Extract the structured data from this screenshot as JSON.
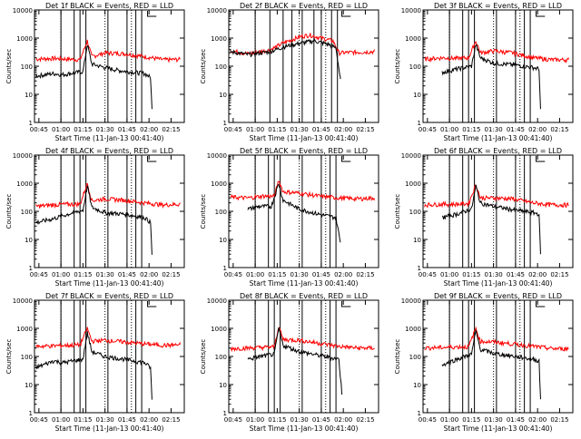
{
  "chart_data": {
    "type": "line",
    "layout": "3x3 grid",
    "ylabel": "Counts/sec",
    "xlabel": "Start Time (11-Jan-13 00:41:40)",
    "yscale": "log",
    "ylim": [
      1,
      10000
    ],
    "ytick_labels": [
      "1",
      "10",
      "100",
      "1000",
      "10000"
    ],
    "xtick_labels": [
      "00:45",
      "01:00",
      "01:15",
      "01:30",
      "01:45",
      "02:00",
      "02:15"
    ],
    "xlim_min": [
      -3,
      99
    ],
    "colors": {
      "events": "#000000",
      "lld": "#ff0000",
      "axes": "#000000"
    },
    "panels": [
      {
        "title": "Det 1f BLACK = Events, RED = LLD",
        "vlines_min": [
          15,
          24,
          28,
          32,
          47,
          60,
          66,
          70
        ],
        "dotted_min": [
          15,
          45,
          63
        ],
        "events": [
          [
            -2,
            45
          ],
          [
            10,
            55
          ],
          [
            16,
            50
          ],
          [
            30,
            65
          ],
          [
            33,
            600
          ],
          [
            36,
            120
          ],
          [
            45,
            90
          ],
          [
            55,
            70
          ],
          [
            72,
            55
          ],
          [
            76,
            40
          ],
          [
            77,
            3
          ]
        ],
        "lld": [
          [
            -2,
            180
          ],
          [
            10,
            190
          ],
          [
            20,
            180
          ],
          [
            28,
            170
          ],
          [
            33,
            800
          ],
          [
            36,
            220
          ],
          [
            45,
            300
          ],
          [
            58,
            280
          ],
          [
            72,
            220
          ],
          [
            85,
            170
          ],
          [
            96,
            175
          ]
        ]
      },
      {
        "title": "Det 2f BLACK = Events, RED = LLD",
        "vlines_min": [
          15,
          25,
          34,
          40,
          47,
          55,
          60,
          67,
          71
        ],
        "dotted_min": [
          15,
          45,
          63
        ],
        "events": [
          [
            -2,
            330
          ],
          [
            10,
            260
          ],
          [
            25,
            330
          ],
          [
            35,
            500
          ],
          [
            45,
            650
          ],
          [
            55,
            800
          ],
          [
            65,
            600
          ],
          [
            70,
            450
          ],
          [
            73,
            35
          ]
        ],
        "lld": [
          [
            -2,
            360
          ],
          [
            10,
            280
          ],
          [
            25,
            380
          ],
          [
            35,
            700
          ],
          [
            45,
            1100
          ],
          [
            52,
            1300
          ],
          [
            60,
            1000
          ],
          [
            68,
            800
          ],
          [
            72,
            300
          ],
          [
            96,
            330
          ]
        ]
      },
      {
        "title": "Det 3f BLACK = Events, RED = LLD",
        "vlines_min": [
          15,
          24,
          28,
          32,
          47,
          60,
          66,
          70
        ],
        "dotted_min": [
          15,
          45,
          63
        ],
        "events": [
          [
            10,
            60
          ],
          [
            20,
            80
          ],
          [
            30,
            100
          ],
          [
            33,
            600
          ],
          [
            36,
            200
          ],
          [
            45,
            130
          ],
          [
            60,
            110
          ],
          [
            72,
            90
          ],
          [
            76,
            80
          ],
          [
            77,
            3
          ]
        ],
        "lld": [
          [
            -2,
            180
          ],
          [
            10,
            200
          ],
          [
            20,
            190
          ],
          [
            28,
            200
          ],
          [
            33,
            800
          ],
          [
            36,
            300
          ],
          [
            45,
            350
          ],
          [
            58,
            300
          ],
          [
            72,
            200
          ],
          [
            85,
            170
          ],
          [
            96,
            170
          ]
        ]
      },
      {
        "title": "Det 4f BLACK = Events, RED = LLD",
        "vlines_min": [
          15,
          24,
          28,
          32,
          47,
          60,
          66,
          70
        ],
        "dotted_min": [
          15,
          45,
          63
        ],
        "events": [
          [
            -2,
            40
          ],
          [
            10,
            55
          ],
          [
            20,
            80
          ],
          [
            30,
            110
          ],
          [
            33,
            800
          ],
          [
            36,
            140
          ],
          [
            45,
            90
          ],
          [
            58,
            80
          ],
          [
            72,
            60
          ],
          [
            76,
            40
          ],
          [
            77,
            3
          ]
        ],
        "lld": [
          [
            -2,
            150
          ],
          [
            10,
            170
          ],
          [
            20,
            180
          ],
          [
            28,
            180
          ],
          [
            33,
            1000
          ],
          [
            36,
            240
          ],
          [
            45,
            280
          ],
          [
            58,
            250
          ],
          [
            72,
            200
          ],
          [
            85,
            170
          ],
          [
            96,
            180
          ]
        ]
      },
      {
        "title": "Det 5f BLACK = Events, RED = LLD",
        "vlines_min": [
          15,
          24,
          28,
          32,
          47,
          60,
          66,
          70
        ],
        "dotted_min": [
          15,
          45,
          63
        ],
        "events": [
          [
            10,
            120
          ],
          [
            18,
            150
          ],
          [
            26,
            150
          ],
          [
            31,
            1000
          ],
          [
            34,
            250
          ],
          [
            45,
            120
          ],
          [
            58,
            80
          ],
          [
            70,
            60
          ],
          [
            73,
            8
          ]
        ],
        "lld": [
          [
            -2,
            320
          ],
          [
            10,
            300
          ],
          [
            20,
            350
          ],
          [
            28,
            340
          ],
          [
            31,
            1300
          ],
          [
            34,
            500
          ],
          [
            45,
            450
          ],
          [
            58,
            350
          ],
          [
            72,
            300
          ],
          [
            85,
            280
          ],
          [
            96,
            300
          ]
        ]
      },
      {
        "title": "Det 6f BLACK = Events, RED = LLD",
        "vlines_min": [
          15,
          24,
          28,
          32,
          47,
          60,
          66,
          70
        ],
        "dotted_min": [
          15,
          45,
          63
        ],
        "events": [
          [
            10,
            60
          ],
          [
            20,
            80
          ],
          [
            30,
            120
          ],
          [
            33,
            800
          ],
          [
            36,
            200
          ],
          [
            45,
            150
          ],
          [
            60,
            110
          ],
          [
            72,
            90
          ],
          [
            76,
            80
          ],
          [
            77,
            3
          ]
        ],
        "lld": [
          [
            -2,
            170
          ],
          [
            10,
            180
          ],
          [
            20,
            180
          ],
          [
            28,
            190
          ],
          [
            33,
            900
          ],
          [
            36,
            300
          ],
          [
            45,
            300
          ],
          [
            58,
            280
          ],
          [
            72,
            200
          ],
          [
            85,
            170
          ],
          [
            96,
            170
          ]
        ]
      },
      {
        "title": "Det 7f BLACK = Events, RED = LLD",
        "vlines_min": [
          15,
          24,
          28,
          32,
          47,
          60,
          66,
          70
        ],
        "dotted_min": [
          15,
          45,
          63
        ],
        "events": [
          [
            -2,
            40
          ],
          [
            10,
            70
          ],
          [
            16,
            60
          ],
          [
            30,
            80
          ],
          [
            33,
            700
          ],
          [
            36,
            150
          ],
          [
            45,
            100
          ],
          [
            58,
            80
          ],
          [
            72,
            60
          ],
          [
            76,
            40
          ],
          [
            77,
            3
          ]
        ],
        "lld": [
          [
            -2,
            230
          ],
          [
            10,
            240
          ],
          [
            20,
            250
          ],
          [
            28,
            260
          ],
          [
            33,
            1000
          ],
          [
            36,
            350
          ],
          [
            45,
            380
          ],
          [
            58,
            330
          ],
          [
            72,
            280
          ],
          [
            85,
            250
          ],
          [
            96,
            260
          ]
        ]
      },
      {
        "title": "Det 8f BLACK = Events, RED = LLD",
        "vlines_min": [
          15,
          24,
          28,
          32,
          47,
          60,
          66,
          70
        ],
        "dotted_min": [
          15,
          45,
          63
        ],
        "events": [
          [
            10,
            80
          ],
          [
            18,
            100
          ],
          [
            28,
            120
          ],
          [
            31,
            1000
          ],
          [
            34,
            250
          ],
          [
            45,
            150
          ],
          [
            58,
            110
          ],
          [
            72,
            80
          ],
          [
            74,
            5
          ]
        ],
        "lld": [
          [
            -2,
            190
          ],
          [
            10,
            200
          ],
          [
            20,
            210
          ],
          [
            28,
            220
          ],
          [
            31,
            1200
          ],
          [
            34,
            400
          ],
          [
            45,
            380
          ],
          [
            58,
            300
          ],
          [
            72,
            230
          ],
          [
            85,
            200
          ],
          [
            96,
            200
          ]
        ]
      },
      {
        "title": "Det 9f BLACK = Events, RED = LLD",
        "vlines_min": [
          15,
          24,
          28,
          32,
          47,
          60,
          66,
          70
        ],
        "dotted_min": [
          15,
          45,
          63
        ],
        "events": [
          [
            10,
            50
          ],
          [
            20,
            80
          ],
          [
            30,
            120
          ],
          [
            33,
            800
          ],
          [
            36,
            180
          ],
          [
            45,
            130
          ],
          [
            60,
            100
          ],
          [
            72,
            80
          ],
          [
            76,
            70
          ],
          [
            77,
            3
          ]
        ],
        "lld": [
          [
            -2,
            200
          ],
          [
            10,
            210
          ],
          [
            20,
            220
          ],
          [
            28,
            220
          ],
          [
            33,
            1000
          ],
          [
            36,
            350
          ],
          [
            45,
            330
          ],
          [
            58,
            280
          ],
          [
            72,
            230
          ],
          [
            85,
            190
          ],
          [
            96,
            190
          ]
        ]
      }
    ]
  }
}
